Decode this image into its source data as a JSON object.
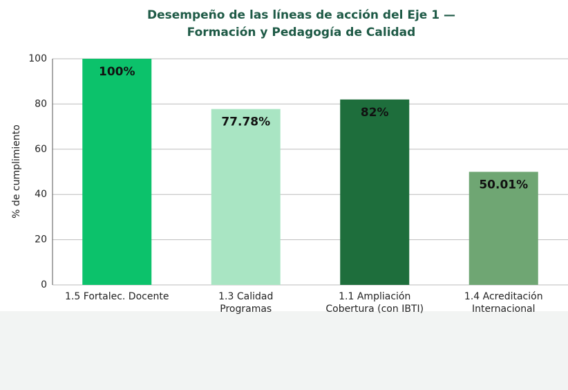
{
  "chart_data": {
    "type": "bar",
    "title": [
      "Desempeño de las líneas de acción del Eje 1 —",
      "Formación y Pedagogía de Calidad"
    ],
    "y_label": "% de cumplimiento",
    "categories": [
      [
        "1.5 Fortalec. Docente"
      ],
      [
        "1.3 Calidad",
        "Programas"
      ],
      [
        "1.1 Ampliación",
        "Cobertura (con IBTI)"
      ],
      [
        "1.4 Acreditación",
        "Internacional"
      ]
    ],
    "values": [
      100,
      77.78,
      82,
      50.01
    ],
    "value_labels": [
      "100%",
      "77.78%",
      "82%",
      "50.01%"
    ],
    "colors": [
      "#0cc26b",
      "#a9e5c3",
      "#1e6e3c",
      "#6fa673"
    ],
    "ylim": [
      0,
      100
    ],
    "yticks": [
      0,
      20,
      40,
      60,
      80,
      100
    ],
    "grid": true
  }
}
